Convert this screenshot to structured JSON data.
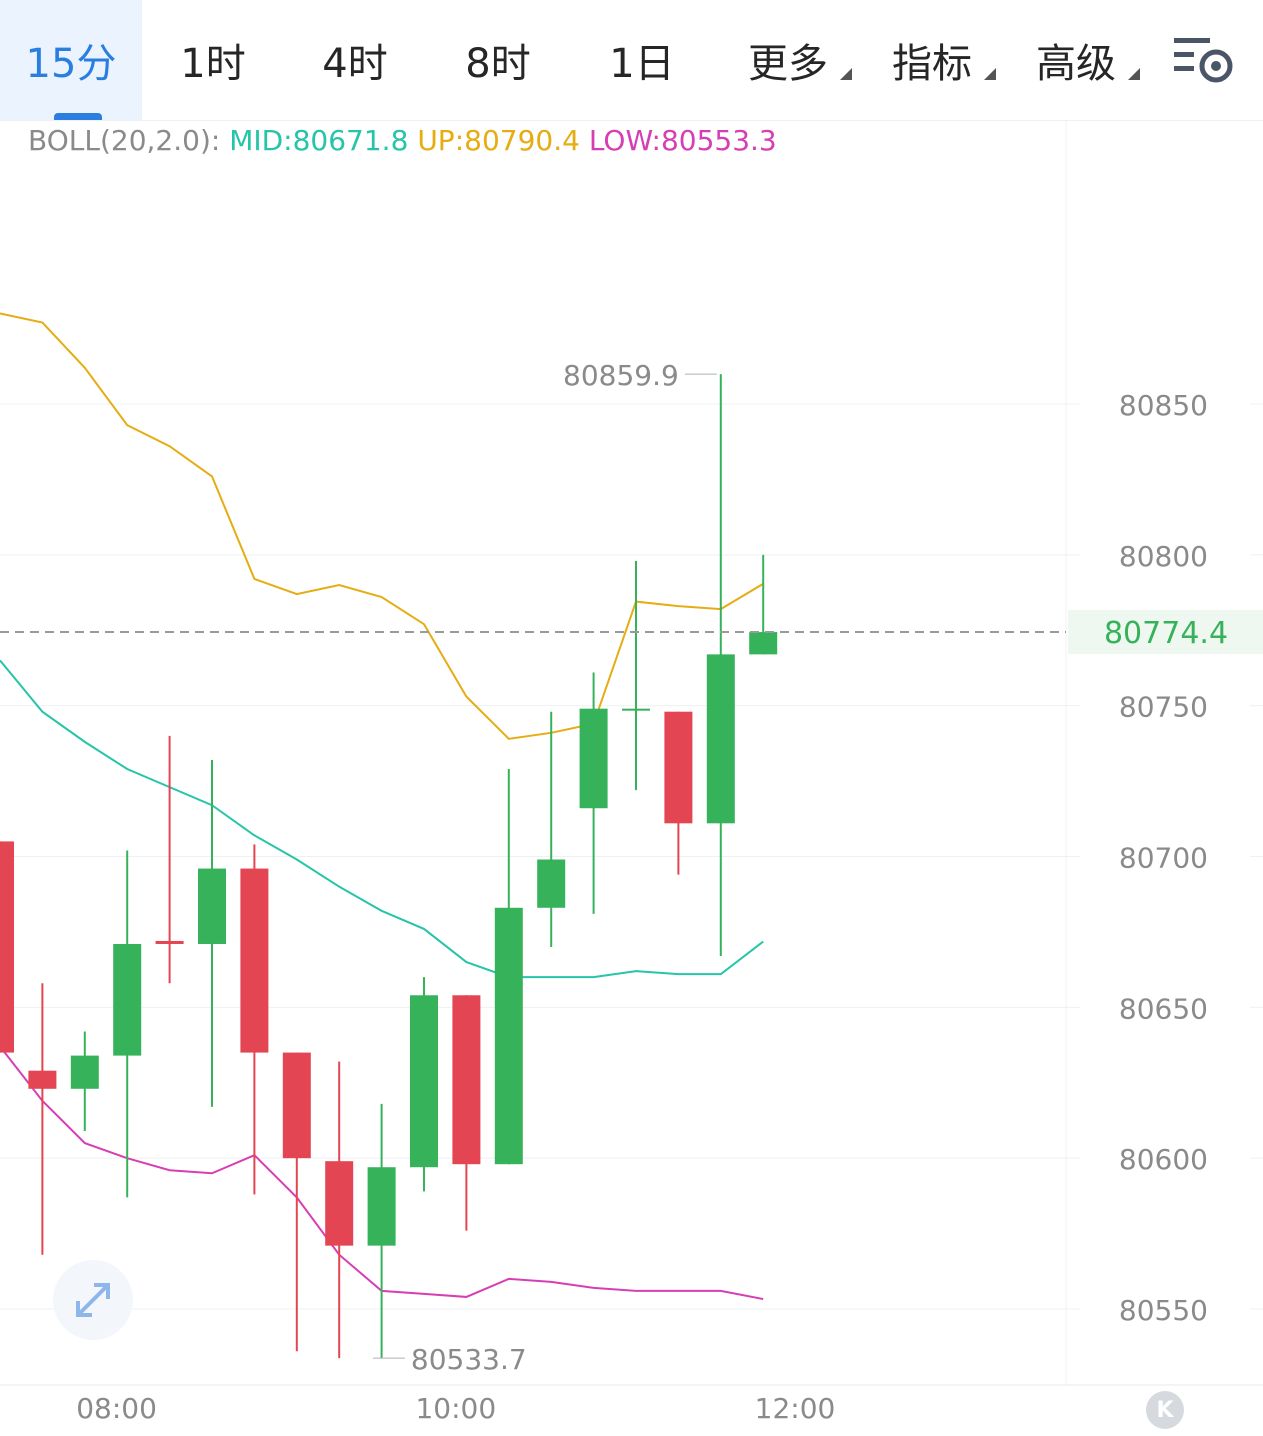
{
  "toolbar": {
    "tabs": [
      {
        "label": "15分",
        "active": true
      },
      {
        "label": "1时",
        "active": false
      },
      {
        "label": "4时",
        "active": false
      },
      {
        "label": "8时",
        "active": false
      },
      {
        "label": "1日",
        "active": false
      },
      {
        "label": "更多",
        "dropdown": true
      },
      {
        "label": "指标",
        "dropdown": true
      },
      {
        "label": "高级",
        "dropdown": true
      }
    ],
    "settings_icon": "chart-settings-gear-icon"
  },
  "indicator": {
    "label": "BOLL(20,2.0):",
    "mid": "MID:80671.8",
    "up": "UP:80790.4",
    "low": "LOW:80553.3"
  },
  "controls": {
    "expand_icon": "expand-arrows-icon",
    "k_button_label": "K"
  },
  "colors": {
    "up_candle": "#36b35a",
    "down_candle": "#e34552",
    "boll_mid": "#26c4a8",
    "boll_up": "#e6ac12",
    "boll_low": "#d63fb3",
    "accent": "#2a7ee0"
  },
  "chart_data": {
    "type": "candlestick",
    "interval": "15分",
    "y_ticks": [
      80550,
      80600,
      80650,
      80700,
      80750,
      80800,
      80850
    ],
    "x_ticks": [
      "08:00",
      "10:00",
      "12:00"
    ],
    "ylim": [
      80527,
      80870
    ],
    "grid": true,
    "current_price": 80774.4,
    "current_price_label": "80774.4",
    "max_label": "80859.9",
    "min_label": "80533.7",
    "candles": [
      {
        "o": 80705,
        "h": 80705,
        "l": 80635,
        "c": 80635
      },
      {
        "o": 80629,
        "h": 80658,
        "l": 80568,
        "c": 80623
      },
      {
        "o": 80623,
        "h": 80642,
        "l": 80609,
        "c": 80634
      },
      {
        "o": 80634,
        "h": 80702,
        "l": 80587,
        "c": 80671
      },
      {
        "o": 80672,
        "h": 80740,
        "l": 80658,
        "c": 80671
      },
      {
        "o": 80671,
        "h": 80732,
        "l": 80617,
        "c": 80696
      },
      {
        "o": 80696,
        "h": 80704,
        "l": 80588,
        "c": 80635
      },
      {
        "o": 80635,
        "h": 80635,
        "l": 80536,
        "c": 80600
      },
      {
        "o": 80599,
        "h": 80632,
        "l": 80533.7,
        "c": 80571
      },
      {
        "o": 80571,
        "h": 80618,
        "l": 80533.7,
        "c": 80597
      },
      {
        "o": 80597,
        "h": 80660,
        "l": 80589,
        "c": 80654
      },
      {
        "o": 80654,
        "h": 80654,
        "l": 80576,
        "c": 80598
      },
      {
        "o": 80598,
        "h": 80729,
        "l": 80598,
        "c": 80683
      },
      {
        "o": 80683,
        "h": 80748,
        "l": 80670,
        "c": 80699
      },
      {
        "o": 80716,
        "h": 80761,
        "l": 80681,
        "c": 80749
      },
      {
        "o": 80749,
        "h": 80798,
        "l": 80722,
        "c": 80749
      },
      {
        "o": 80748,
        "h": 80748,
        "l": 80694,
        "c": 80711
      },
      {
        "o": 80711,
        "h": 80859.9,
        "l": 80667,
        "c": 80767
      },
      {
        "o": 80767,
        "h": 80800,
        "l": 80767,
        "c": 80774.4
      }
    ],
    "boll_up": [
      80880,
      80877,
      80862,
      80843,
      80836,
      80826,
      80792,
      80787,
      80790,
      80786,
      80777,
      80753,
      80739,
      80741,
      80744,
      80784.5,
      80783,
      80782,
      80790.4
    ],
    "boll_mid": [
      80765,
      80748,
      80738,
      80729,
      80723,
      80717,
      80707,
      80699,
      80690,
      80682,
      80676,
      80665,
      80660,
      80660,
      80660,
      80662,
      80661,
      80661,
      80671.8
    ],
    "boll_low": [
      80637,
      80619,
      80605,
      80600,
      80596,
      80595,
      80601,
      80587,
      80568,
      80556,
      80555,
      80554,
      80560,
      80559,
      80557,
      80556,
      80556,
      80556,
      80553.3
    ],
    "x_positions_note": ""
  }
}
